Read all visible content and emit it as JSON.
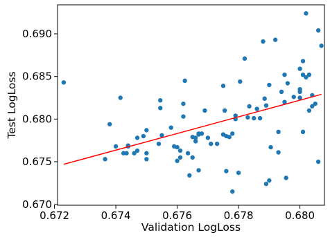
{
  "chart_data": {
    "type": "scatter",
    "title": "",
    "xlabel": "Validation LogLoss",
    "ylabel": "Test LogLoss",
    "xlim": [
      0.6721,
      0.6808
    ],
    "ylim": [
      0.6699,
      0.6934
    ],
    "x_ticks": [
      0.672,
      0.674,
      0.676,
      0.678,
      0.68
    ],
    "x_tick_labels": [
      "0.672",
      "0.674",
      "0.676",
      "0.678",
      "0.680"
    ],
    "y_ticks": [
      0.67,
      0.675,
      0.68,
      0.685,
      0.69
    ],
    "y_tick_labels": [
      "0.670",
      "0.675",
      "0.680",
      "0.685",
      "0.690"
    ],
    "grid": false,
    "legend": "none",
    "series": [
      {
        "kind": "points",
        "color": "#1f77b4",
        "x": [
          0.6723,
          0.67365,
          0.6738,
          0.674,
          0.67415,
          0.67425,
          0.67435,
          0.6744,
          0.6744,
          0.6746,
          0.6747,
          0.6747,
          0.6749,
          0.675,
          0.675,
          0.675,
          0.6754,
          0.67545,
          0.67545,
          0.6755,
          0.6758,
          0.6759,
          0.676,
          0.676,
          0.6761,
          0.6761,
          0.6762,
          0.6762,
          0.67625,
          0.67635,
          0.6764,
          0.6765,
          0.6765,
          0.6766,
          0.6766,
          0.6767,
          0.6767,
          0.6767,
          0.6768,
          0.6769,
          0.677,
          0.6771,
          0.6773,
          0.6775,
          0.6775,
          0.67755,
          0.6776,
          0.6776,
          0.6777,
          0.6778,
          0.6778,
          0.6779,
          0.6779,
          0.678,
          0.67805,
          0.6782,
          0.6783,
          0.67835,
          0.6785,
          0.6786,
          0.6787,
          0.6788,
          0.67885,
          0.6789,
          0.6789,
          0.679,
          0.679,
          0.67905,
          0.6792,
          0.6793,
          0.6793,
          0.6794,
          0.6795,
          0.6795,
          0.67955,
          0.6796,
          0.6798,
          0.68,
          0.68,
          0.68,
          0.68,
          0.6801,
          0.6801,
          0.6801,
          0.6802,
          0.6802,
          0.6803,
          0.6803,
          0.6804,
          0.6804,
          0.6805,
          0.6806,
          0.6806,
          0.6807
        ],
        "y": [
          0.6843,
          0.6753,
          0.6794,
          0.6768,
          0.6825,
          0.676,
          0.676,
          0.6768,
          0.6769,
          0.676,
          0.6763,
          0.6778,
          0.678,
          0.6787,
          0.676,
          0.6753,
          0.6771,
          0.6822,
          0.6813,
          0.6781,
          0.679,
          0.6768,
          0.6767,
          0.6751,
          0.6755,
          0.6763,
          0.6818,
          0.6803,
          0.6845,
          0.676,
          0.6734,
          0.6755,
          0.6779,
          0.6774,
          0.6778,
          0.6782,
          0.6783,
          0.674,
          0.6783,
          0.681,
          0.6778,
          0.6771,
          0.6771,
          0.6839,
          0.6782,
          0.681,
          0.6739,
          0.678,
          0.6779,
          0.6715,
          0.6783,
          0.68,
          0.6804,
          0.6737,
          0.6844,
          0.6871,
          0.6802,
          0.6815,
          0.6801,
          0.6812,
          0.6801,
          0.6891,
          0.6824,
          0.6816,
          0.6724,
          0.684,
          0.6728,
          0.6767,
          0.6893,
          0.6785,
          0.6761,
          0.6832,
          0.6852,
          0.682,
          0.6731,
          0.6842,
          0.6826,
          0.6859,
          0.6825,
          0.6832,
          0.6835,
          0.6852,
          0.6868,
          0.6785,
          0.6924,
          0.6849,
          0.6852,
          0.681,
          0.6828,
          0.6815,
          0.6818,
          0.6904,
          0.675,
          0.6886
        ]
      },
      {
        "kind": "trendline",
        "color": "#ff0000",
        "x": [
          0.6723,
          0.6807
        ],
        "y": [
          0.6747,
          0.6829
        ]
      }
    ]
  }
}
